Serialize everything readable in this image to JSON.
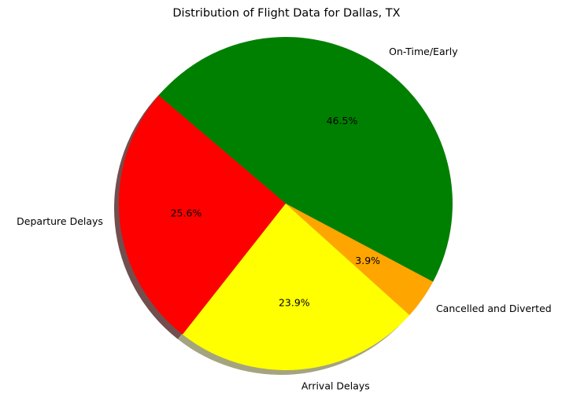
{
  "chart_data": {
    "type": "pie",
    "title": "Distribution of Flight Data for Dallas, TX",
    "slices": [
      {
        "label": "On-Time/Early",
        "value": 46.5,
        "pct_label": "46.5%",
        "color": "#008000"
      },
      {
        "label": "Departure Delays",
        "value": 25.6,
        "pct_label": "25.6%",
        "color": "#ff0000"
      },
      {
        "label": "Arrival Delays",
        "value": 23.9,
        "pct_label": "23.9%",
        "color": "#ffff00"
      },
      {
        "label": "Cancelled and Diverted",
        "value": 3.9,
        "pct_label": "3.9%",
        "color": "#ffa500"
      }
    ],
    "start_angle_deg": -28,
    "direction": "counterclockwise",
    "shadow": true,
    "legend": "none",
    "grid": false
  }
}
